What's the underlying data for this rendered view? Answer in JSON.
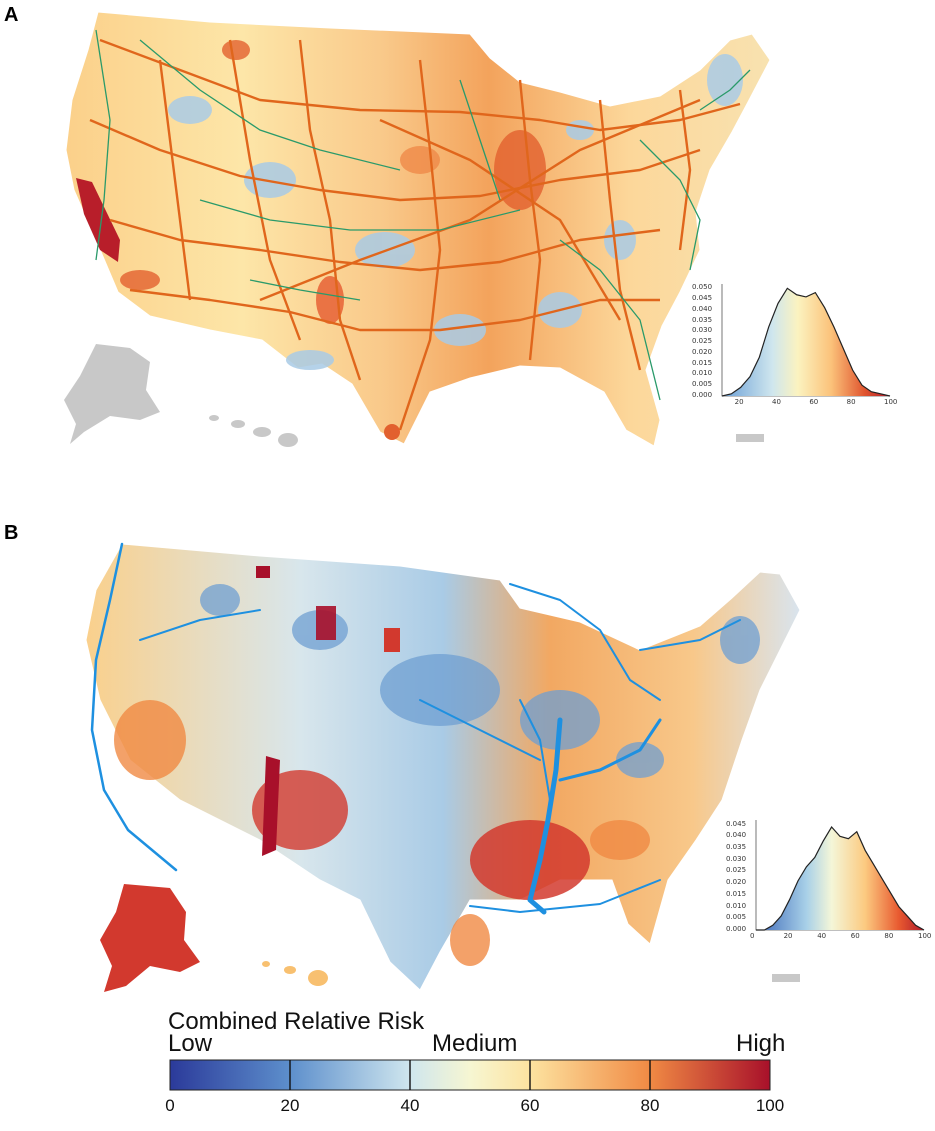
{
  "panels": [
    {
      "letter": "A"
    },
    {
      "letter": "B"
    }
  ],
  "colors": {
    "rail_orange": "#e0661c",
    "rail_green": "#2a9a6a",
    "river_blue": "#1e90e0",
    "gray_territory": "#c8c8c8",
    "scale": [
      "#2b3a9a",
      "#4b7cc4",
      "#9ec8e4",
      "#e8f4ee",
      "#fdf2b6",
      "#fbc27a",
      "#f08a44",
      "#d2392e",
      "#a8102a"
    ]
  },
  "legend": {
    "title": "Combined Relative Risk",
    "low": "Low",
    "medium": "Medium",
    "high": "High",
    "ticks": [
      "0",
      "20",
      "40",
      "60",
      "80",
      "100"
    ],
    "range": [
      0,
      100
    ]
  },
  "chart_data": [
    {
      "type": "area",
      "panel": "A",
      "x": [
        10,
        15,
        20,
        25,
        30,
        35,
        40,
        45,
        50,
        55,
        60,
        65,
        70,
        75,
        80,
        85,
        90,
        95,
        100
      ],
      "y": [
        0.0,
        0.001,
        0.004,
        0.009,
        0.018,
        0.032,
        0.043,
        0.05,
        0.047,
        0.046,
        0.048,
        0.041,
        0.032,
        0.022,
        0.012,
        0.005,
        0.002,
        0.001,
        0.0
      ],
      "x_ticks": [
        "20",
        "40",
        "60",
        "80",
        "100"
      ],
      "y_ticks": [
        "0.000",
        "0.005",
        "0.010",
        "0.015",
        "0.020",
        "0.025",
        "0.030",
        "0.035",
        "0.040",
        "0.045",
        "0.050"
      ],
      "xlim": [
        10,
        100
      ],
      "ylim": [
        0,
        0.052
      ]
    },
    {
      "type": "area",
      "panel": "B",
      "x": [
        0,
        5,
        10,
        15,
        20,
        25,
        30,
        35,
        40,
        45,
        50,
        55,
        60,
        65,
        70,
        75,
        80,
        85,
        90,
        95,
        100
      ],
      "y": [
        0.0,
        0.0,
        0.002,
        0.006,
        0.013,
        0.021,
        0.027,
        0.031,
        0.038,
        0.044,
        0.04,
        0.039,
        0.042,
        0.034,
        0.028,
        0.022,
        0.016,
        0.01,
        0.006,
        0.002,
        0.0
      ],
      "x_ticks": [
        "0",
        "20",
        "40",
        "60",
        "80",
        "100"
      ],
      "y_ticks": [
        "0.000",
        "0.005",
        "0.010",
        "0.015",
        "0.020",
        "0.025",
        "0.030",
        "0.035",
        "0.040",
        "0.045"
      ],
      "xlim": [
        0,
        100
      ],
      "ylim": [
        0,
        0.047
      ]
    }
  ]
}
